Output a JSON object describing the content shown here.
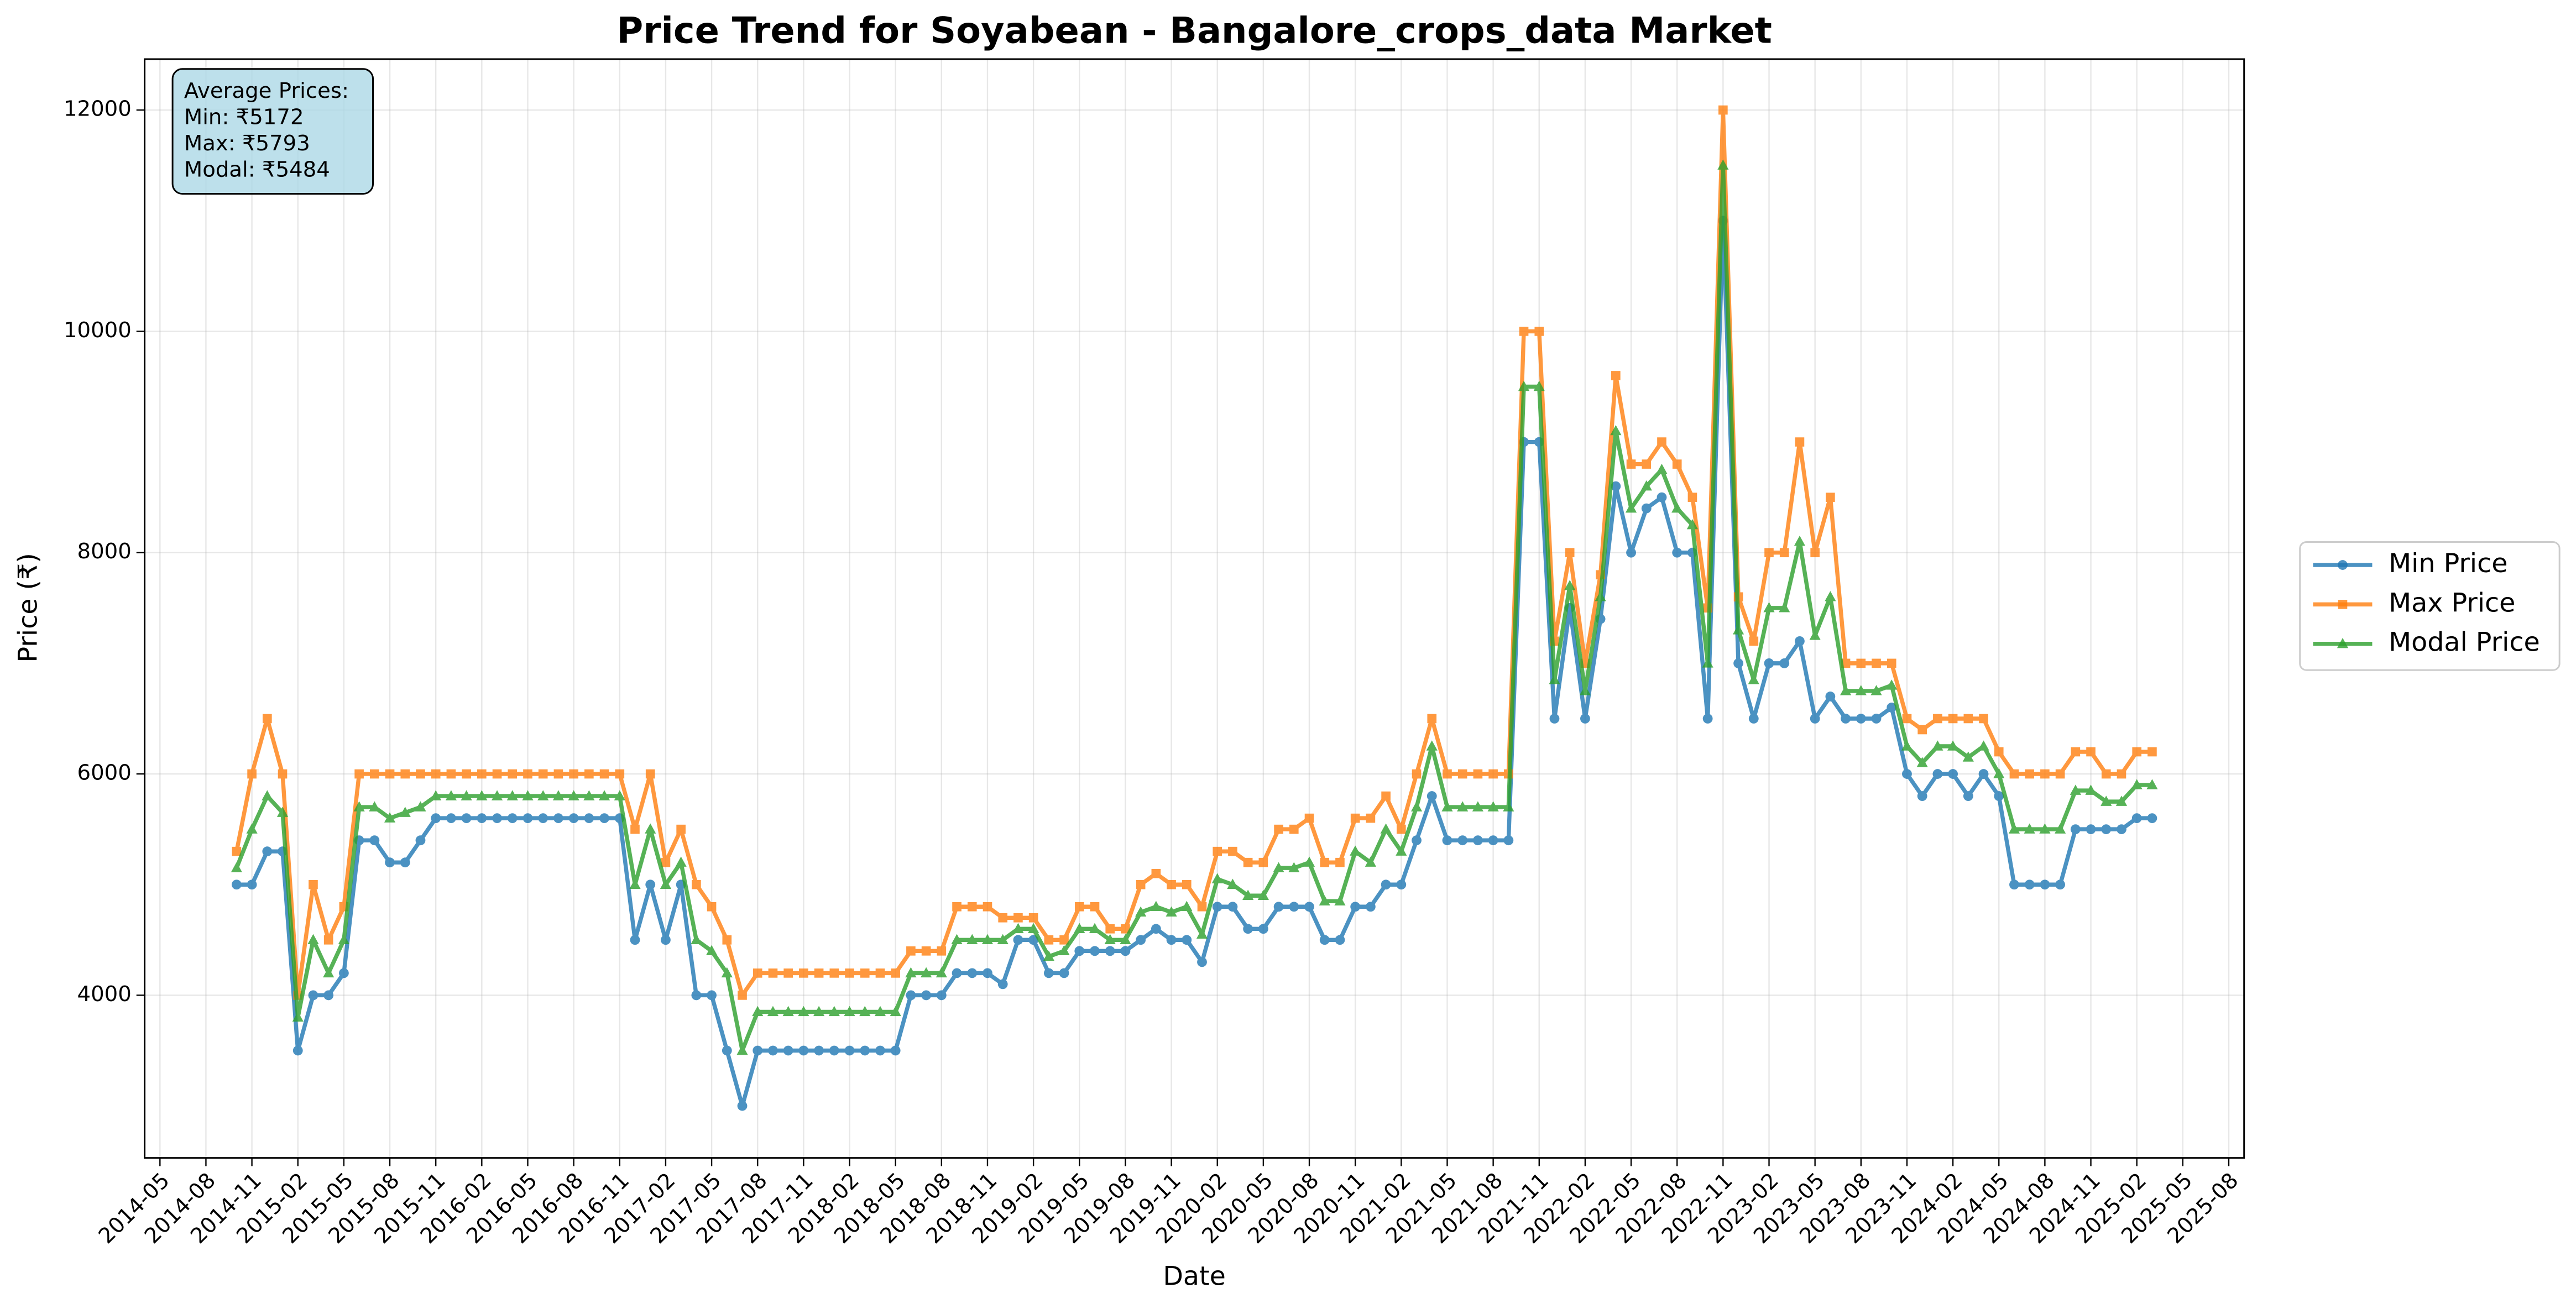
{
  "chart_data": {
    "type": "line",
    "title": "Price Trend for Soyabean - Bangalore_crops_data Market",
    "xlabel": "Date",
    "ylabel": "Price (₹)",
    "annotation": [
      "Average Prices:",
      "Min: ₹5172",
      "Max: ₹5793",
      "Modal: ₹5484"
    ],
    "grid": true,
    "legend": "outside right",
    "xlim": [
      "2014-04",
      "2025-09"
    ],
    "ylim": [
      2530,
      12460
    ],
    "yticks": [
      4000,
      6000,
      8000,
      10000,
      12000
    ],
    "xticks": [
      "2014-05",
      "2014-08",
      "2014-11",
      "2015-02",
      "2015-05",
      "2015-08",
      "2015-11",
      "2016-02",
      "2016-05",
      "2016-08",
      "2016-11",
      "2017-02",
      "2017-05",
      "2017-08",
      "2017-11",
      "2018-02",
      "2018-05",
      "2018-08",
      "2018-11",
      "2019-02",
      "2019-05",
      "2019-08",
      "2019-11",
      "2020-02",
      "2020-05",
      "2020-08",
      "2020-11",
      "2021-02",
      "2021-05",
      "2021-08",
      "2021-11",
      "2022-02",
      "2022-05",
      "2022-08",
      "2022-11",
      "2023-02",
      "2023-05",
      "2023-08",
      "2023-11",
      "2024-02",
      "2024-05",
      "2024-08",
      "2024-11",
      "2025-02",
      "2025-05",
      "2025-08"
    ],
    "x": [
      "2014-10",
      "2014-11",
      "2014-12",
      "2015-01",
      "2015-02",
      "2015-03",
      "2015-04",
      "2015-05",
      "2015-06",
      "2015-07",
      "2015-08",
      "2015-09",
      "2015-10",
      "2015-11",
      "2015-12",
      "2016-01",
      "2016-02",
      "2016-03",
      "2016-04",
      "2016-05",
      "2016-06",
      "2016-07",
      "2016-08",
      "2016-09",
      "2016-10",
      "2016-11",
      "2016-12",
      "2017-01",
      "2017-02",
      "2017-03",
      "2017-04",
      "2017-05",
      "2017-06",
      "2017-07",
      "2017-08",
      "2017-09",
      "2017-10",
      "2017-11",
      "2017-12",
      "2018-01",
      "2018-02",
      "2018-03",
      "2018-04",
      "2018-05",
      "2018-06",
      "2018-07",
      "2018-08",
      "2018-09",
      "2018-10",
      "2018-11",
      "2018-12",
      "2019-01",
      "2019-02",
      "2019-03",
      "2019-04",
      "2019-05",
      "2019-06",
      "2019-07",
      "2019-08",
      "2019-09",
      "2019-10",
      "2019-11",
      "2019-12",
      "2020-01",
      "2020-02",
      "2020-03",
      "2020-04",
      "2020-05",
      "2020-06",
      "2020-07",
      "2020-08",
      "2020-09",
      "2020-10",
      "2020-11",
      "2020-12",
      "2021-01",
      "2021-02",
      "2021-03",
      "2021-04",
      "2021-05",
      "2021-06",
      "2021-07",
      "2021-08",
      "2021-09",
      "2021-10",
      "2021-11",
      "2021-12",
      "2022-01",
      "2022-02",
      "2022-03",
      "2022-04",
      "2022-05",
      "2022-06",
      "2022-07",
      "2022-08",
      "2022-09",
      "2022-10",
      "2022-11",
      "2022-12",
      "2023-01",
      "2023-02",
      "2023-03",
      "2023-04",
      "2023-05",
      "2023-06",
      "2023-07",
      "2023-08",
      "2023-09",
      "2023-10",
      "2023-11",
      "2023-12",
      "2024-01",
      "2024-02",
      "2024-03",
      "2024-04",
      "2024-05",
      "2024-06",
      "2024-07",
      "2024-08",
      "2024-09",
      "2024-10",
      "2024-11",
      "2024-12",
      "2025-01",
      "2025-02",
      "2025-03"
    ],
    "series": [
      {
        "name": "Min Price",
        "color": "#1f77b4",
        "marker": "circle",
        "values": [
          5000,
          5000,
          5300,
          5300,
          3500,
          4000,
          4000,
          4200,
          5400,
          5400,
          5200,
          5200,
          5400,
          5600,
          5600,
          5600,
          5600,
          5600,
          5600,
          5600,
          5600,
          5600,
          5600,
          5600,
          5600,
          5600,
          4500,
          5000,
          4500,
          5000,
          4000,
          4000,
          3500,
          3000,
          3500,
          3500,
          3500,
          3500,
          3500,
          3500,
          3500,
          3500,
          3500,
          3500,
          4000,
          4000,
          4000,
          4200,
          4200,
          4200,
          4100,
          4500,
          4500,
          4200,
          4200,
          4400,
          4400,
          4400,
          4400,
          4500,
          4600,
          4500,
          4500,
          4300,
          4800,
          4800,
          4600,
          4600,
          4800,
          4800,
          4800,
          4500,
          4500,
          4800,
          4800,
          5000,
          5000,
          5400,
          5800,
          5400,
          5400,
          5400,
          5400,
          5400,
          9000,
          9000,
          6500,
          7500,
          6500,
          7400,
          8600,
          8000,
          8400,
          8500,
          8000,
          8000,
          6500,
          11000,
          7000,
          6500,
          7000,
          7000,
          7200,
          6500,
          6700,
          6500,
          6500,
          6500,
          6600,
          6000,
          5800,
          6000,
          6000,
          5800,
          6000,
          5800,
          5000,
          5000,
          5000,
          5000,
          5500,
          5500,
          5500,
          5500,
          5600,
          5600
        ]
      },
      {
        "name": "Max Price",
        "color": "#ff7f0e",
        "marker": "square",
        "values": [
          5300,
          6000,
          6500,
          6000,
          4000,
          5000,
          4500,
          4800,
          6000,
          6000,
          6000,
          6000,
          6000,
          6000,
          6000,
          6000,
          6000,
          6000,
          6000,
          6000,
          6000,
          6000,
          6000,
          6000,
          6000,
          6000,
          5500,
          6000,
          5200,
          5500,
          5000,
          4800,
          4500,
          4000,
          4200,
          4200,
          4200,
          4200,
          4200,
          4200,
          4200,
          4200,
          4200,
          4200,
          4400,
          4400,
          4400,
          4800,
          4800,
          4800,
          4700,
          4700,
          4700,
          4500,
          4500,
          4800,
          4800,
          4600,
          4600,
          5000,
          5100,
          5000,
          5000,
          4800,
          5300,
          5300,
          5200,
          5200,
          5500,
          5500,
          5600,
          5200,
          5200,
          5600,
          5600,
          5800,
          5500,
          6000,
          6500,
          6000,
          6000,
          6000,
          6000,
          6000,
          10000,
          10000,
          7200,
          8000,
          7000,
          7800,
          9600,
          8800,
          8800,
          9000,
          8800,
          8500,
          7500,
          12000,
          7600,
          7200,
          8000,
          8000,
          9000,
          8000,
          8500,
          7000,
          7000,
          7000,
          7000,
          6500,
          6400,
          6500,
          6500,
          6500,
          6500,
          6200,
          6000,
          6000,
          6000,
          6000,
          6200,
          6200,
          6000,
          6000,
          6200,
          6200
        ]
      },
      {
        "name": "Modal Price",
        "color": "#2ca02c",
        "marker": "triangle",
        "values": [
          5150,
          5500,
          5800,
          5650,
          3800,
          4500,
          4200,
          4500,
          5700,
          5700,
          5600,
          5650,
          5700,
          5800,
          5800,
          5800,
          5800,
          5800,
          5800,
          5800,
          5800,
          5800,
          5800,
          5800,
          5800,
          5800,
          5000,
          5500,
          5000,
          5200,
          4500,
          4400,
          4200,
          3500,
          3850,
          3850,
          3850,
          3850,
          3850,
          3850,
          3850,
          3850,
          3850,
          3850,
          4200,
          4200,
          4200,
          4500,
          4500,
          4500,
          4500,
          4600,
          4600,
          4350,
          4400,
          4600,
          4600,
          4500,
          4500,
          4750,
          4800,
          4750,
          4800,
          4550,
          5050,
          5000,
          4900,
          4900,
          5150,
          5150,
          5200,
          4850,
          4850,
          5300,
          5200,
          5500,
          5300,
          5700,
          6250,
          5700,
          5700,
          5700,
          5700,
          5700,
          9500,
          9500,
          6850,
          7700,
          6750,
          7600,
          9100,
          8400,
          8600,
          8750,
          8400,
          8250,
          7000,
          11500,
          7300,
          6850,
          7500,
          7500,
          8100,
          7250,
          7600,
          6750,
          6750,
          6750,
          6800,
          6250,
          6100,
          6250,
          6250,
          6150,
          6250,
          6000,
          5500,
          5500,
          5500,
          5500,
          5850,
          5850,
          5750,
          5750,
          5900,
          5900
        ]
      }
    ]
  }
}
